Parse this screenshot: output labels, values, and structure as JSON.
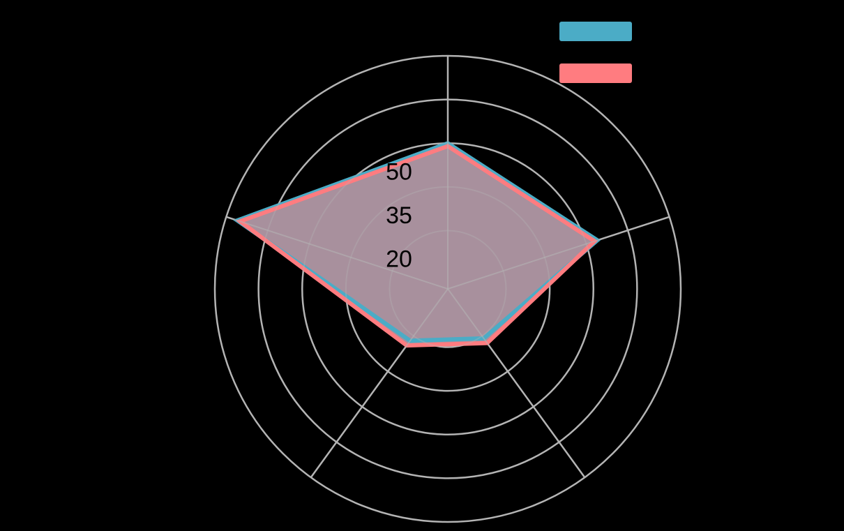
{
  "chart_data": {
    "type": "radar",
    "title": "",
    "axes": [
      "",
      "",
      "",
      "",
      ""
    ],
    "axis_order": "clockwise from top",
    "radial_range": [
      0,
      80
    ],
    "radial_ticks": [
      20,
      35,
      50,
      65,
      80
    ],
    "radial_tick_labels_visible": [
      "20",
      "35",
      "50"
    ],
    "grid": true,
    "legend_position": "top-right",
    "series": [
      {
        "name": "",
        "color": "#4BACC6",
        "values": [
          50,
          54,
          21,
          22,
          76
        ]
      },
      {
        "name": "",
        "color": "#FF7C80",
        "values": [
          49,
          53,
          23,
          24,
          75
        ]
      }
    ],
    "fill_color": "#A8909D"
  },
  "styles": {
    "background": "#000000",
    "grid_color": "#B4B4B4",
    "tick_label_color": "#000000"
  },
  "legend": {
    "items": [
      {
        "label": "",
        "color": "#4BACC6"
      },
      {
        "label": "",
        "color": "#FF7C80"
      }
    ]
  }
}
